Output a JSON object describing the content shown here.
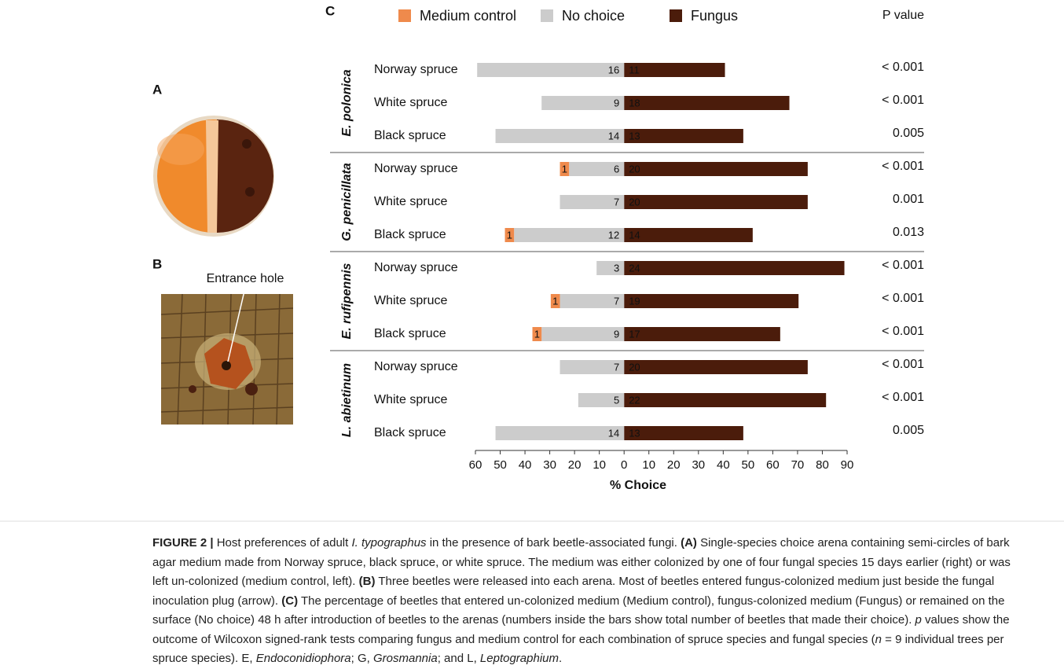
{
  "panel_a": {
    "label": "A"
  },
  "panel_b": {
    "label": "B",
    "annotation": "Entrance hole"
  },
  "chart_data": {
    "type": "bar",
    "panel_label": "C",
    "xlabel": "% Choice",
    "pvalue_header": "P value",
    "groups": [
      "E. polonica",
      "G. penicillata",
      "E. rufipennis",
      "L. abietinum"
    ],
    "categories": [
      "Norway spruce",
      "White spruce",
      "Black spruce",
      "Norway spruce",
      "White spruce",
      "Black spruce",
      "Norway spruce",
      "White spruce",
      "Black spruce",
      "Norway spruce",
      "White spruce",
      "Black spruce"
    ],
    "series": [
      {
        "name": "Medium control",
        "color": "#ef8a4c",
        "values": [
          null,
          null,
          null,
          -3.7,
          null,
          -3.7,
          null,
          -3.7,
          -3.7,
          null,
          null,
          null
        ],
        "counts": [
          null,
          null,
          null,
          1,
          null,
          1,
          null,
          1,
          1,
          null,
          null,
          null
        ]
      },
      {
        "name": "No choice",
        "color": "#cccccc",
        "values": [
          -59.3,
          -33.3,
          -51.9,
          -22.2,
          -25.9,
          -44.4,
          -11.1,
          -25.9,
          -33.3,
          -25.9,
          -18.5,
          -51.9
        ],
        "counts": [
          16,
          9,
          14,
          6,
          7,
          12,
          3,
          7,
          9,
          7,
          5,
          14
        ]
      },
      {
        "name": "Fungus",
        "color": "#4b1c0b",
        "values": [
          40.7,
          66.7,
          48.1,
          74.1,
          74.1,
          51.9,
          88.9,
          70.4,
          63.0,
          74.1,
          81.5,
          48.1
        ],
        "counts": [
          11,
          18,
          13,
          20,
          20,
          14,
          24,
          19,
          17,
          20,
          22,
          13
        ]
      }
    ],
    "p_values": [
      "< 0.001",
      "< 0.001",
      "0.005",
      "< 0.001",
      "0.001",
      "0.013",
      "< 0.001",
      "< 0.001",
      "< 0.001",
      "< 0.001",
      "< 0.001",
      "0.005"
    ],
    "xlim": [
      -60,
      90
    ],
    "xticks": [
      {
        "value": -60,
        "label": "60"
      },
      {
        "value": -50,
        "label": "50"
      },
      {
        "value": -40,
        "label": "40"
      },
      {
        "value": -30,
        "label": "30"
      },
      {
        "value": -20,
        "label": "20"
      },
      {
        "value": -10,
        "label": "10"
      },
      0,
      10,
      20,
      30,
      40,
      50,
      60,
      70,
      80,
      90
    ]
  },
  "caption": [
    "FIGURE 2 |",
    " Host preferences of adult ",
    "I. typographus",
    " in the presence of bark beetle-associated fungi. ",
    "(A)",
    " Single-species choice arena containing semi-circles of bark agar medium made from Norway spruce, black spruce, or white spruce. The medium was either colonized by one of four fungal species 15 days earlier (right) or was left un-colonized (medium control, left). ",
    "(B)",
    " Three beetles were released into each arena. Most of beetles entered fungus-colonized medium just beside the fungal inoculation plug (arrow). ",
    "(C)",
    " The percentage of beetles that entered un-colonized medium (Medium control), fungus-colonized medium (Fungus) or remained on the surface (No choice) 48 h after introduction of beetles to the arenas (numbers inside the bars show total number of beetles that made their choice). ",
    "p",
    " values show the outcome of Wilcoxon signed-rank tests comparing fungus and medium control for each combination of spruce species and fungal species (",
    "n",
    " = 9 individual trees per spruce species). E, ",
    "Endoconidiophora",
    "; G, ",
    "Grosmannia",
    "; and L, ",
    "Leptographium",
    "."
  ]
}
